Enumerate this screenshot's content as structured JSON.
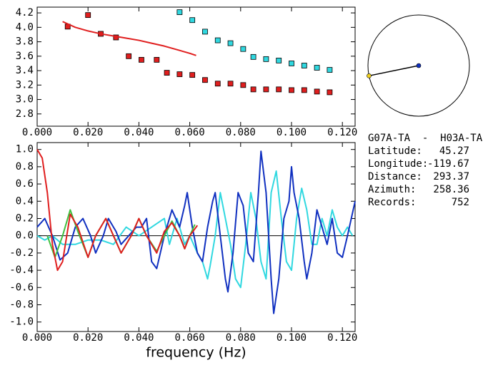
{
  "chart_data": [
    {
      "type": "scatter",
      "xlim": [
        0,
        0.125
      ],
      "ylim": [
        2.63,
        4.28
      ],
      "xticks": [
        {
          "value": 0,
          "label": "0.000"
        },
        {
          "value": 0.02,
          "label": "0.020"
        },
        {
          "value": 0.04,
          "label": "0.040"
        },
        {
          "value": 0.06,
          "label": "0.060"
        },
        {
          "value": 0.08,
          "label": "0.080"
        },
        {
          "value": 0.1,
          "label": "0.100"
        },
        {
          "value": 0.12,
          "label": "0.120"
        }
      ],
      "yticks": [
        {
          "value": 2.8,
          "label": "2.8"
        },
        {
          "value": 3,
          "label": "3.0"
        },
        3.2,
        3.4,
        3.6,
        3.8,
        {
          "value": 4,
          "label": "4.0"
        },
        4.2
      ],
      "series": [
        {
          "name": "red-squares",
          "style": "markers",
          "color": "#e01e1e",
          "x": [
            0.012,
            0.02,
            0.025,
            0.031,
            0.036,
            0.041,
            0.047,
            0.051,
            0.056,
            0.061,
            0.066,
            0.071,
            0.076,
            0.081,
            0.085,
            0.09,
            0.095,
            0.1,
            0.105,
            0.11,
            0.115
          ],
          "values": [
            4.01,
            4.17,
            3.91,
            3.86,
            3.6,
            3.55,
            3.55,
            3.37,
            3.35,
            3.34,
            3.27,
            3.22,
            3.22,
            3.2,
            3.14,
            3.14,
            3.14,
            3.13,
            3.13,
            3.11,
            3.1
          ]
        },
        {
          "name": "cyan-squares",
          "style": "markers",
          "color": "#30d8e0",
          "x": [
            0.056,
            0.061,
            0.066,
            0.071,
            0.076,
            0.081,
            0.085,
            0.09,
            0.095,
            0.1,
            0.105,
            0.11,
            0.115
          ],
          "values": [
            4.21,
            4.1,
            3.94,
            3.82,
            3.78,
            3.7,
            3.59,
            3.56,
            3.54,
            3.5,
            3.47,
            3.44,
            3.41
          ]
        },
        {
          "name": "red-curve",
          "style": "line",
          "color": "#e01e1e",
          "x": [
            0.01,
            0.015,
            0.02,
            0.025,
            0.03,
            0.035,
            0.04,
            0.045,
            0.05,
            0.055,
            0.06,
            0.0625
          ],
          "values": [
            4.08,
            4.0,
            3.95,
            3.91,
            3.88,
            3.85,
            3.82,
            3.78,
            3.74,
            3.69,
            3.64,
            3.61
          ]
        }
      ]
    },
    {
      "type": "line",
      "x_label": "frequency (Hz)",
      "xlim": [
        0,
        0.125
      ],
      "ylim": [
        -1.11,
        1.08
      ],
      "zero_line": true,
      "xticks": [
        {
          "value": 0,
          "label": "0.000"
        },
        {
          "value": 0.02,
          "label": "0.020"
        },
        {
          "value": 0.04,
          "label": "0.040"
        },
        {
          "value": 0.06,
          "label": "0.060"
        },
        {
          "value": 0.08,
          "label": "0.080"
        },
        {
          "value": 0.1,
          "label": "0.100"
        },
        {
          "value": 0.12,
          "label": "0.120"
        }
      ],
      "yticks": [
        {
          "value": -1,
          "label": "-1.0"
        },
        -0.8,
        -0.6,
        -0.4,
        -0.2,
        {
          "value": 0,
          "label": "0.0"
        },
        0.2,
        0.4,
        0.6,
        0.8,
        {
          "value": 1,
          "label": "1.0"
        }
      ],
      "series": [
        {
          "name": "cyan",
          "color": "#30d8e0",
          "x": [
            0,
            0.003,
            0.006,
            0.01,
            0.015,
            0.02,
            0.025,
            0.03,
            0.035,
            0.04,
            0.045,
            0.05,
            0.052,
            0.055,
            0.058,
            0.06,
            0.063,
            0.065,
            0.067,
            0.068,
            0.07,
            0.072,
            0.074,
            0.076,
            0.078,
            0.08,
            0.082,
            0.084,
            0.086,
            0.088,
            0.09,
            0.092,
            0.094,
            0.096,
            0.098,
            0.1,
            0.102,
            0.104,
            0.106,
            0.108,
            0.11,
            0.112,
            0.114,
            0.116,
            0.118,
            0.12,
            0.122,
            0.124
          ],
          "values": [
            0.0,
            -0.05,
            0.0,
            -0.1,
            -0.1,
            -0.05,
            -0.05,
            -0.1,
            0.1,
            0.0,
            0.1,
            0.2,
            -0.1,
            0.2,
            -0.1,
            0.0,
            -0.2,
            -0.3,
            -0.5,
            -0.35,
            0.0,
            0.5,
            0.2,
            -0.1,
            -0.5,
            -0.6,
            -0.1,
            0.5,
            0.2,
            -0.3,
            -0.5,
            0.5,
            0.75,
            0.2,
            -0.3,
            -0.4,
            0.2,
            0.55,
            0.3,
            -0.1,
            -0.1,
            0.2,
            0.0,
            0.3,
            0.1,
            0.0,
            0.1,
            0.0
          ]
        },
        {
          "name": "blue",
          "color": "#1030c0",
          "x": [
            0,
            0.003,
            0.006,
            0.009,
            0.012,
            0.015,
            0.018,
            0.021,
            0.023,
            0.026,
            0.028,
            0.031,
            0.033,
            0.036,
            0.039,
            0.041,
            0.043,
            0.045,
            0.047,
            0.05,
            0.053,
            0.056,
            0.058,
            0.059,
            0.061,
            0.063,
            0.065,
            0.067,
            0.069,
            0.07,
            0.072,
            0.074,
            0.075,
            0.077,
            0.079,
            0.081,
            0.083,
            0.085,
            0.087,
            0.088,
            0.09,
            0.092,
            0.093,
            0.095,
            0.097,
            0.099,
            0.1,
            0.101,
            0.103,
            0.105,
            0.106,
            0.108,
            0.11,
            0.112,
            0.114,
            0.116,
            0.118,
            0.12,
            0.122,
            0.125
          ],
          "values": [
            0.1,
            0.2,
            0.0,
            -0.28,
            -0.2,
            0.1,
            0.2,
            0.0,
            -0.2,
            0.0,
            0.2,
            0.05,
            -0.1,
            0.0,
            0.1,
            0.1,
            0.2,
            -0.3,
            -0.38,
            0.0,
            0.3,
            0.1,
            0.35,
            0.5,
            0.1,
            -0.2,
            -0.3,
            0.1,
            0.4,
            0.5,
            0.0,
            -0.5,
            -0.65,
            -0.2,
            0.5,
            0.35,
            -0.2,
            -0.3,
            0.5,
            0.98,
            0.5,
            -0.5,
            -0.9,
            -0.5,
            0.2,
            0.4,
            0.8,
            0.5,
            0.2,
            -0.3,
            -0.5,
            -0.2,
            0.3,
            0.1,
            -0.1,
            0.2,
            -0.2,
            -0.25,
            0.0,
            0.4
          ]
        },
        {
          "name": "green",
          "color": "#40c040",
          "x": [
            0.004,
            0.007,
            0.01,
            0.013,
            0.016,
            0.02,
            0.023,
            0.027,
            0.03,
            0.033,
            0.037,
            0.04,
            0.043,
            0.047,
            0.05,
            0.053,
            0.056,
            0.058,
            0.06,
            0.062
          ],
          "values": [
            0.0,
            -0.25,
            0.0,
            0.3,
            0.05,
            -0.25,
            0.0,
            0.2,
            0.0,
            -0.2,
            0.0,
            0.2,
            0.0,
            -0.18,
            0.0,
            0.17,
            0.0,
            -0.15,
            0.0,
            0.13
          ]
        },
        {
          "name": "red",
          "color": "#e01e1e",
          "x": [
            0,
            0.002,
            0.004,
            0.006,
            0.008,
            0.01,
            0.013,
            0.016,
            0.02,
            0.023,
            0.027,
            0.03,
            0.033,
            0.037,
            0.04,
            0.043,
            0.047,
            0.05,
            0.053,
            0.056,
            0.058,
            0.06,
            0.063
          ],
          "values": [
            1.0,
            0.9,
            0.5,
            -0.1,
            -0.4,
            -0.3,
            0.25,
            0.1,
            -0.25,
            0.0,
            0.2,
            0.0,
            -0.2,
            0.0,
            0.2,
            0.0,
            -0.2,
            0.05,
            0.15,
            0.0,
            -0.15,
            0.0,
            0.12
          ]
        }
      ]
    }
  ],
  "station_info": {
    "title": "G07A-TA  -  H03A-TA",
    "azimuth_index": 3,
    "rows": [
      {
        "label": "Latitude:",
        "value": 45.27
      },
      {
        "label": "Longitude:",
        "value": -119.67
      },
      {
        "label": "Distance:",
        "value": 293.37
      },
      {
        "label": "Azimuth:",
        "value": 258.36
      },
      {
        "label": "Records:",
        "value": 752
      }
    ]
  }
}
